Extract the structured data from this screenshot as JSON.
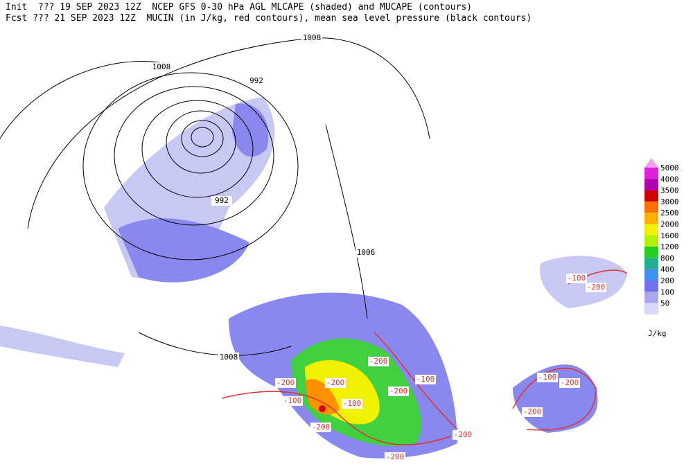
{
  "header": {
    "line1": "Init  ??? 19 SEP 2023 12Z  NCEP GFS 0-30 hPa AGL MLCAPE (shaded) and MUCAPE (contours)",
    "line2": "Fcst ??? 21 SEP 2023 12Z  MUCIN (in J/kg, red contours), mean sea level pressure (black contours)"
  },
  "isobar_labels": [
    1008,
    1008,
    992,
    992,
    1006,
    1008
  ],
  "mucin_labels": [
    -200,
    -200,
    -200,
    -200,
    -200,
    -200,
    -200,
    -200,
    -200,
    -200,
    -100,
    -100,
    -100,
    -100,
    -100
  ],
  "colorbar": {
    "levels": [
      5000,
      4000,
      3500,
      3000,
      2500,
      2000,
      1600,
      1200,
      800,
      400,
      200,
      100,
      50
    ],
    "colors": [
      "#e020e0",
      "#b000b0",
      "#d00000",
      "#ff7000",
      "#ffb000",
      "#f0f000",
      "#b0f000",
      "#20d020",
      "#20b090",
      "#4090f0",
      "#7070f0",
      "#a8a8f0",
      "#d8d8f8"
    ],
    "unit": "J/kg"
  }
}
